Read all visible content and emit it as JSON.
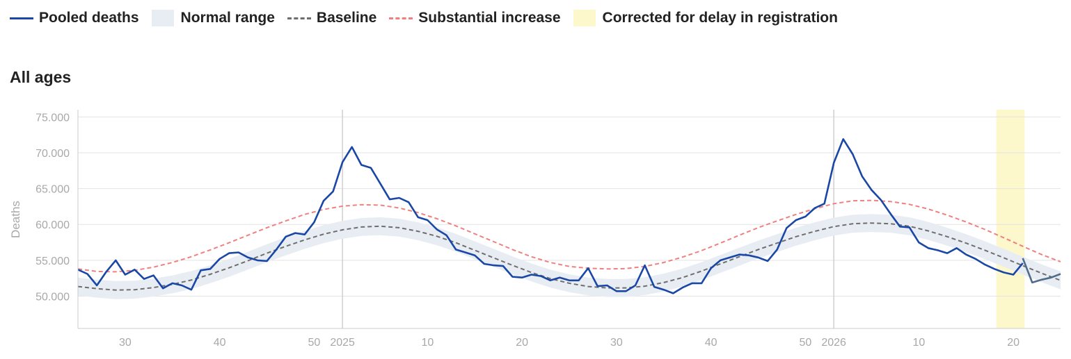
{
  "legend": {
    "pooled": "Pooled deaths",
    "normal": "Normal range",
    "baseline": "Baseline",
    "substantial": "Substantial increase",
    "corrected": "Corrected for delay in registration"
  },
  "panel_title": "All ages",
  "colors": {
    "pooled": "#1a47a6",
    "normal_band": "#e8edf3",
    "baseline": "#6e6e6e",
    "substantial": "#f08080",
    "corrected": "#fdf7cc",
    "grid": "#e3e3e3",
    "axis_text": "#a8a8a8"
  },
  "chart_data": {
    "type": "line",
    "title": "All ages",
    "ylabel": "Deaths",
    "xlabel": "",
    "x_unit": "ISO week (continuous index from 2024 week 25)",
    "x_range": [
      25,
      129
    ],
    "ylim": [
      45500,
      76000
    ],
    "y_ticks": [
      50000,
      55000,
      60000,
      65000,
      70000,
      75000
    ],
    "y_tick_labels": [
      "50.000",
      "55.000",
      "60.000",
      "65.000",
      "70.000",
      "75.000"
    ],
    "x_ticks": [
      {
        "x": 30,
        "label": "30"
      },
      {
        "x": 40,
        "label": "40"
      },
      {
        "x": 50,
        "label": "50"
      },
      {
        "x": 53,
        "label": "2025"
      },
      {
        "x": 62,
        "label": "10"
      },
      {
        "x": 72,
        "label": "20"
      },
      {
        "x": 82,
        "label": "30"
      },
      {
        "x": 92,
        "label": "40"
      },
      {
        "x": 102,
        "label": "50"
      },
      {
        "x": 105,
        "label": "2026"
      },
      {
        "x": 114,
        "label": "10"
      },
      {
        "x": 124,
        "label": "20"
      }
    ],
    "year_lines": [
      53,
      105
    ],
    "grid": true,
    "legend_position": "top",
    "corrected_range": [
      122.2,
      125.2
    ],
    "series": [
      {
        "name": "Pooled deaths",
        "x": [
          25,
          26,
          27,
          28,
          29,
          30,
          31,
          32,
          33,
          34,
          35,
          36,
          37,
          38,
          39,
          40,
          41,
          42,
          43,
          44,
          45,
          46,
          47,
          48,
          49,
          50,
          51,
          52,
          53,
          54,
          55,
          56,
          57,
          58,
          59,
          60,
          61,
          62,
          63,
          64,
          65,
          66,
          67,
          68,
          69,
          70,
          71,
          72,
          73,
          74,
          75,
          76,
          77,
          78,
          79,
          80,
          81,
          82,
          83,
          84,
          85,
          86,
          87,
          88,
          89,
          90,
          91,
          92,
          93,
          94,
          95,
          96,
          97,
          98,
          99,
          100,
          101,
          102,
          103,
          104,
          105,
          106,
          107,
          108,
          109,
          110,
          111,
          112,
          113,
          114,
          115,
          116,
          117,
          118,
          119,
          120,
          121,
          122,
          123,
          124,
          125
        ],
        "y": [
          53700,
          53100,
          51500,
          53400,
          55000,
          53000,
          53700,
          52400,
          52900,
          51100,
          51800,
          51500,
          50900,
          53600,
          53800,
          55200,
          56000,
          56100,
          55400,
          55000,
          54900,
          56500,
          58300,
          58800,
          58600,
          60300,
          63300,
          64600,
          68700,
          70800,
          68300,
          67900,
          65700,
          63500,
          63700,
          63100,
          61000,
          60600,
          59300,
          58500,
          56500,
          56100,
          55700,
          54500,
          54300,
          54200,
          52700,
          52600,
          53000,
          52800,
          52200,
          52600,
          52200,
          52200,
          53900,
          51400,
          51500,
          50700,
          50700,
          51500,
          54300,
          51300,
          50900,
          50400,
          51200,
          51800,
          51800,
          53900,
          55000,
          55400,
          55800,
          55700,
          55400,
          54900,
          56500,
          59500,
          60600,
          61100,
          62300,
          62900,
          68600,
          71900,
          69800,
          66700,
          64800,
          63400,
          61500,
          59700,
          59600,
          57500,
          56700,
          56400,
          56000,
          56700,
          55800,
          55200,
          54400,
          53800,
          53300,
          53000,
          54600
        ]
      },
      {
        "name": "Corrected for delay in registration",
        "x": [
          125,
          126,
          127,
          128,
          129
        ],
        "y": [
          55300,
          51900,
          52300,
          52600,
          53100
        ]
      },
      {
        "name": "Baseline",
        "x": [
          25,
          27,
          29,
          31,
          33,
          35,
          37,
          39,
          41,
          43,
          45,
          47,
          49,
          51,
          53,
          55,
          57,
          59,
          61,
          63,
          65,
          67,
          69,
          71,
          73,
          75,
          77,
          79,
          81,
          83,
          85,
          87,
          89,
          91,
          93,
          95,
          97,
          99,
          101,
          103,
          105,
          107,
          109,
          111,
          113,
          115,
          117,
          119,
          121,
          123,
          125,
          127,
          129
        ],
        "y": [
          51350,
          51050,
          50850,
          50900,
          51200,
          51650,
          52250,
          53050,
          53950,
          54950,
          56000,
          56950,
          57850,
          58650,
          59250,
          59650,
          59750,
          59550,
          59050,
          58350,
          57450,
          56400,
          55350,
          54300,
          53300,
          52450,
          51800,
          51350,
          51150,
          51150,
          51400,
          51900,
          52600,
          53500,
          54500,
          55500,
          56500,
          57400,
          58300,
          59050,
          59700,
          60100,
          60200,
          60100,
          59750,
          59100,
          58300,
          57400,
          56400,
          55350,
          54250,
          53200,
          52200
        ]
      },
      {
        "name": "Substantial increase",
        "x": [
          25,
          27,
          29,
          31,
          33,
          35,
          37,
          39,
          41,
          43,
          45,
          47,
          49,
          51,
          53,
          55,
          57,
          59,
          61,
          63,
          65,
          67,
          69,
          71,
          73,
          75,
          77,
          79,
          81,
          83,
          85,
          87,
          89,
          91,
          93,
          95,
          97,
          99,
          101,
          103,
          105,
          107,
          109,
          111,
          113,
          115,
          117,
          119,
          121,
          123,
          125,
          127,
          129
        ],
        "y": [
          53800,
          53450,
          53400,
          53600,
          54050,
          54700,
          55500,
          56450,
          57450,
          58500,
          59550,
          60500,
          61400,
          62100,
          62550,
          62750,
          62700,
          62300,
          61650,
          60800,
          59800,
          58700,
          57600,
          56500,
          55500,
          54700,
          54150,
          53900,
          53800,
          53850,
          54150,
          54700,
          55450,
          56350,
          57400,
          58500,
          59550,
          60500,
          61400,
          62200,
          62900,
          63300,
          63350,
          63200,
          62800,
          62150,
          61300,
          60350,
          59300,
          58150,
          56950,
          55800,
          54800
        ]
      }
    ],
    "normal_range": {
      "name": "Normal range",
      "x": [
        25,
        27,
        29,
        31,
        33,
        35,
        37,
        39,
        41,
        43,
        45,
        47,
        49,
        51,
        53,
        55,
        57,
        59,
        61,
        63,
        65,
        67,
        69,
        71,
        73,
        75,
        77,
        79,
        81,
        83,
        85,
        87,
        89,
        91,
        93,
        95,
        97,
        99,
        101,
        103,
        105,
        107,
        109,
        111,
        113,
        115,
        117,
        119,
        121,
        123,
        125,
        127,
        129
      ],
      "lower": [
        50100,
        49800,
        49600,
        49650,
        49950,
        50400,
        51000,
        51800,
        52700,
        53700,
        54750,
        55700,
        56600,
        57400,
        58000,
        58400,
        58500,
        58300,
        57800,
        57100,
        56200,
        55150,
        54100,
        53050,
        52050,
        51200,
        50550,
        50100,
        49900,
        49900,
        50150,
        50650,
        51350,
        52250,
        53250,
        54250,
        55250,
        56150,
        57050,
        57800,
        58450,
        58850,
        58950,
        58850,
        58500,
        57850,
        57050,
        56150,
        55150,
        54100,
        53000,
        51950,
        50950
      ],
      "upper": [
        52600,
        52300,
        52100,
        52150,
        52450,
        52900,
        53500,
        54300,
        55200,
        56200,
        57250,
        58200,
        59100,
        59900,
        60500,
        60900,
        61000,
        60800,
        60300,
        59600,
        58700,
        57650,
        56600,
        55550,
        54550,
        53700,
        53050,
        52600,
        52400,
        52400,
        52650,
        53150,
        53850,
        54750,
        55750,
        56750,
        57750,
        58650,
        59550,
        60300,
        60950,
        61350,
        61450,
        61350,
        61000,
        60350,
        59550,
        58650,
        57650,
        56600,
        55500,
        54450,
        53450
      ]
    }
  }
}
